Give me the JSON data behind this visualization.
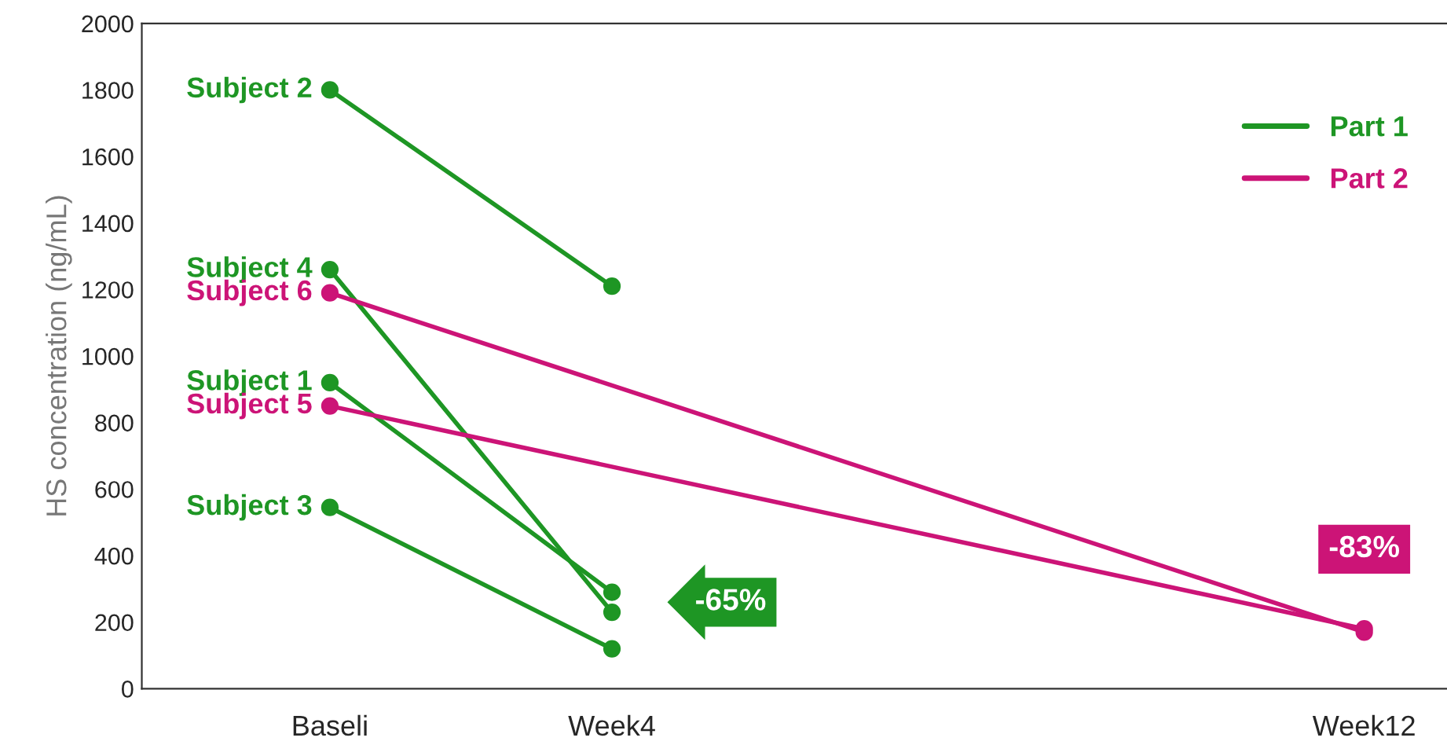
{
  "chart_data": {
    "type": "line",
    "ylabel": "HS concentration (ng/mL)",
    "categories": [
      "Baseli",
      null,
      null,
      "Week4",
      null,
      null,
      null,
      null,
      null,
      null,
      null,
      "Week12"
    ],
    "series": [
      {
        "name": "Part 1",
        "color": "#1e9624",
        "values": [
          1800,
          null,
          null,
          1210,
          null,
          null,
          null,
          null,
          null,
          null,
          null,
          null
        ]
      },
      {
        "color": "#1e9624",
        "values": [
          1260,
          null,
          null,
          230,
          null,
          null,
          null,
          null,
          null,
          null,
          null,
          null
        ]
      },
      {
        "color": "#1e9624",
        "values": [
          920,
          null,
          null,
          290,
          null,
          null,
          null,
          null,
          null,
          null,
          null,
          null
        ]
      },
      {
        "color": "#1e9624",
        "values": [
          545,
          null,
          null,
          120,
          null,
          null,
          null,
          null,
          null,
          null,
          null,
          null
        ]
      },
      {
        "name": "Part 2",
        "color": "#cc1477",
        "values": [
          1190,
          null,
          null,
          null,
          null,
          null,
          null,
          null,
          null,
          null,
          null,
          170
        ]
      },
      {
        "color": "#cc1477",
        "values": [
          850,
          null,
          null,
          null,
          null,
          null,
          null,
          null,
          null,
          null,
          null,
          180
        ]
      }
    ],
    "annotations": [
      {
        "text": "Subject 2",
        "x": "Baseli",
        "y": 1800
      },
      {
        "text": "Subject 4",
        "x": "Baseli",
        "y": 1260
      },
      {
        "text": "Subject 6",
        "x": "Baseli",
        "y": 1190
      },
      {
        "text": "Subject 1",
        "x": "Baseli",
        "y": 920
      },
      {
        "text": "Subject 5",
        "x": "Baseli",
        "y": 850
      },
      {
        "text": "Subject 3",
        "x": "Baseli",
        "y": 545
      },
      {
        "text": "-65%",
        "x": "Week4",
        "y": 260
      },
      {
        "text": "-83%",
        "x": "Week12",
        "y": 170
      }
    ],
    "ylim": [
      0,
      2000
    ],
    "yticks": [
      0,
      200,
      400,
      600,
      800,
      1000,
      1200,
      1400,
      1600,
      1800,
      2000
    ],
    "marker": "circle",
    "line_style": "solid",
    "grid": false,
    "legend": "top right"
  }
}
